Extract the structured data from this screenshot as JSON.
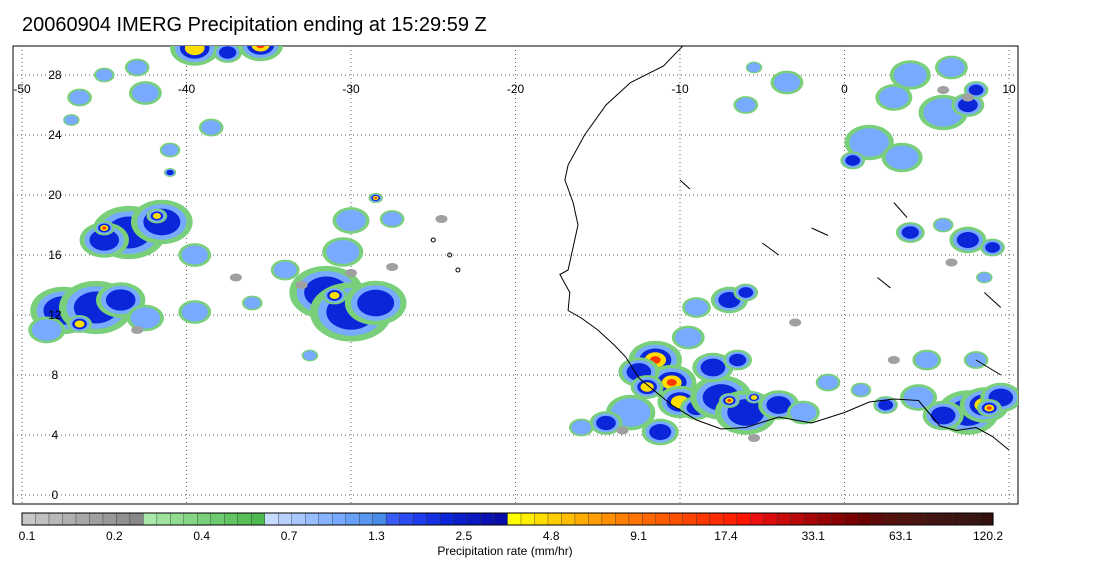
{
  "title": "20060904 IMERG Precipitation ending at 15:29:59 Z",
  "map": {
    "lon_range": [
      -50,
      10
    ],
    "lat_range": [
      -1,
      30
    ],
    "lon_ticks": [
      "-50",
      "-40",
      "-30",
      "-20",
      "-10",
      "0",
      "10"
    ],
    "lat_ticks": [
      "0",
      "4",
      "8",
      "12",
      "16",
      "20",
      "24",
      "28"
    ],
    "grid": "dotted"
  },
  "colorbar": {
    "label": "Precipitation rate (mm/hr)",
    "tick_labels": [
      "0.1",
      "0.2",
      "0.4",
      "0.7",
      "1.3",
      "2.5",
      "4.8",
      "9.1",
      "17.4",
      "33.1",
      "63.1",
      "120.2"
    ],
    "colors": [
      "#c8c8c8",
      "#c0c0c0",
      "#b8b8b8",
      "#b0b0b0",
      "#a8a8a8",
      "#a0a0a0",
      "#989898",
      "#909090",
      "#888888",
      "#aae8aa",
      "#9ee29e",
      "#92dc92",
      "#86d686",
      "#7ad07a",
      "#6eca6e",
      "#62c462",
      "#58be58",
      "#50b850",
      "#c8dcff",
      "#b8d2ff",
      "#a8c8ff",
      "#98beff",
      "#88b4ff",
      "#78aaff",
      "#68a0f8",
      "#5896f0",
      "#488ce8",
      "#3a5cf5",
      "#2a4cf0",
      "#1e3ceb",
      "#1430e0",
      "#0a26d8",
      "#0a1ecc",
      "#0a18c0",
      "#0a12b4",
      "#0a0ca8",
      "#ffff00",
      "#ffee00",
      "#ffde00",
      "#ffce00",
      "#ffbe00",
      "#ffae00",
      "#ff9e00",
      "#ff8e00",
      "#ff8000",
      "#ff7400",
      "#ff6800",
      "#ff5c00",
      "#ff5000",
      "#ff4400",
      "#ff3800",
      "#ff2c00",
      "#ff2000",
      "#ff1400",
      "#ee1010",
      "#dc0c0c",
      "#ca0a0a",
      "#b80808",
      "#a80606",
      "#980404",
      "#880202",
      "#780000",
      "#6a0000",
      "#5c0a0a",
      "#56100c",
      "#50140e",
      "#4a1410",
      "#441412",
      "#401412",
      "#3c1412",
      "#381412",
      "#341210"
    ]
  },
  "color_legend": {
    "light_rain": "#7ad07a",
    "moderate": "#78aaff",
    "heavy": "#0a26d8",
    "intense": "#ffde00",
    "extreme": "#ff3800"
  }
}
